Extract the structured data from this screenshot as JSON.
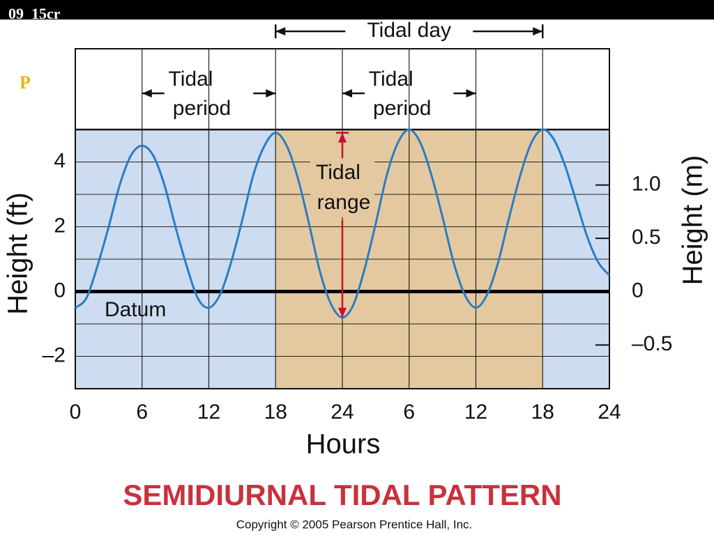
{
  "slide": {
    "title": "09_15cr",
    "bullet": "P",
    "copyright": "Copyright © 2005 Pearson Prentice Hall, Inc."
  },
  "chart_data": {
    "type": "line",
    "title": "SEMIDIURNAL TIDAL PATTERN",
    "x_label": "Hours",
    "y_label": "Height (ft)",
    "y2_label": "Height (m)",
    "x": [
      0,
      1,
      2,
      3,
      4,
      5,
      6,
      7,
      8,
      9,
      10,
      11,
      12,
      13,
      14,
      15,
      16,
      17,
      18,
      19,
      20,
      21,
      22,
      23,
      24,
      25,
      26,
      27,
      28,
      29,
      30,
      31,
      32,
      33,
      34,
      35,
      36,
      37,
      38,
      39,
      40,
      41,
      42,
      43,
      44,
      45,
      46,
      47,
      48
    ],
    "series": [
      {
        "name": "Height",
        "color": "#2a7cc4",
        "values": [
          -0.5,
          -0.2,
          0.8,
          2.0,
          3.3,
          4.2,
          4.5,
          4.2,
          3.3,
          2.0,
          0.8,
          -0.2,
          -0.5,
          -0.1,
          0.9,
          2.2,
          3.6,
          4.5,
          4.9,
          4.5,
          3.5,
          2.1,
          0.6,
          -0.4,
          -0.8,
          -0.4,
          0.7,
          2.1,
          3.6,
          4.6,
          5.0,
          4.6,
          3.6,
          2.3,
          0.9,
          -0.1,
          -0.5,
          -0.1,
          0.9,
          2.3,
          3.6,
          4.6,
          5.0,
          4.7,
          3.9,
          2.8,
          1.7,
          0.9,
          0.5
        ]
      }
    ],
    "xlim": [
      0,
      48
    ],
    "xticks": [
      0,
      6,
      12,
      18,
      24,
      {
        "value": 30,
        "label": "6"
      },
      {
        "value": 36,
        "label": "12"
      },
      {
        "value": 42,
        "label": "18"
      },
      {
        "value": 48,
        "label": "24"
      }
    ],
    "ylim": [
      -3,
      5
    ],
    "yticks": [
      {
        "value": -2,
        "label": "–2"
      },
      0,
      2,
      4
    ],
    "ygrid_minor": [
      -3,
      -1,
      1,
      3,
      5
    ],
    "y2lim": [
      -0.91,
      1.52
    ],
    "y2ticks": [
      {
        "value": -0.5,
        "label": "–0.5"
      },
      0,
      {
        "value": 0.5,
        "label": "0.5"
      },
      {
        "value": 1,
        "label": "1.0"
      }
    ],
    "highlight": {
      "from": 18,
      "to": 42
    },
    "annotations": {
      "tidal_day": "Tidal day",
      "tidal_period_1": [
        "Tidal",
        "period"
      ],
      "tidal_period_2": [
        "Tidal",
        "period"
      ],
      "tidal_range": [
        "Tidal",
        "range"
      ],
      "datum": "Datum"
    },
    "grid": true
  }
}
